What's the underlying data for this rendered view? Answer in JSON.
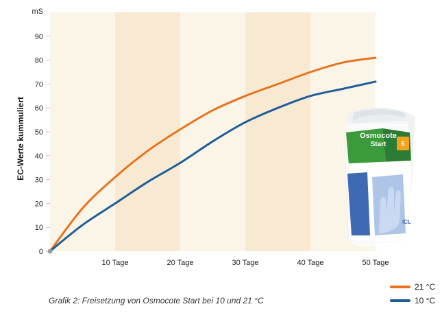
{
  "chart_data": {
    "type": "line",
    "ylabel": "EC-Werte kummuliert",
    "yunit": "mS",
    "ylim": [
      0,
      100
    ],
    "yticks": [
      0,
      10,
      20,
      30,
      40,
      50,
      60,
      70,
      80,
      90
    ],
    "xlim": [
      0,
      50
    ],
    "xticks": [
      10,
      20,
      30,
      40,
      50
    ],
    "xtick_labels": [
      "10 Tage",
      "20 Tage",
      "30 Tage",
      "40 Tage",
      "50 Tage"
    ],
    "background_bands": "alternating shaded 10-day intervals",
    "legend_position": "bottom-right",
    "series": [
      {
        "name": "21 °C",
        "color": "#e8731e",
        "x": [
          0,
          5,
          10,
          15,
          20,
          25,
          30,
          35,
          40,
          45,
          50
        ],
        "values": [
          0,
          18,
          31,
          42,
          51,
          59,
          65,
          70,
          75,
          79,
          81
        ]
      },
      {
        "name": "10 °C",
        "color": "#1f5d99",
        "x": [
          0,
          5,
          10,
          15,
          20,
          25,
          30,
          35,
          40,
          45,
          50
        ],
        "values": [
          0,
          11,
          20,
          29,
          37,
          46,
          54,
          60,
          65,
          68,
          71
        ]
      }
    ]
  },
  "caption": "Grafik 2: Freisetzung von Osmocote Start bei 10 und 21 °C",
  "product_image": {
    "brand": "Osmocote",
    "product": "Start",
    "badge": "6",
    "maker": "ICL"
  }
}
